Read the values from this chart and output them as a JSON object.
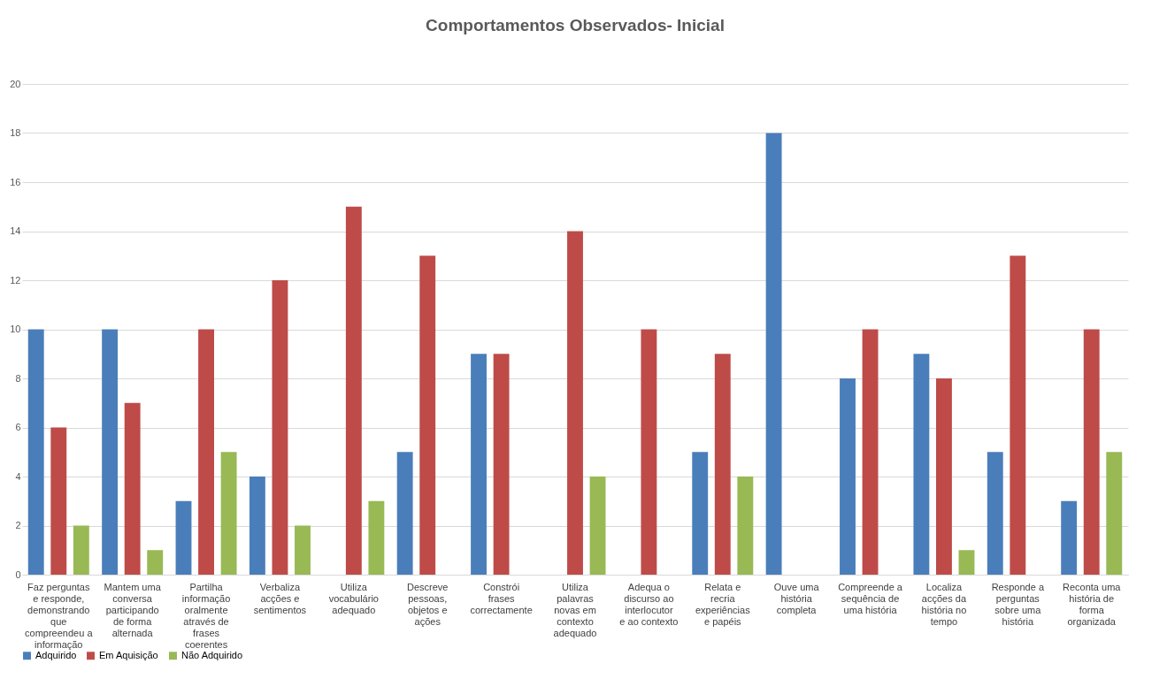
{
  "chart_data": {
    "type": "bar",
    "title": "Comportamentos Observados- Inicial",
    "categories": [
      "Faz perguntas e responde, demonstrando que compreendeu a informação",
      "Mantem uma conversa participando de forma alternada",
      "Partilha informação oralmente através de frases coerentes",
      "Verbaliza acções e sentimentos",
      "Utiliza vocabulário adequado",
      "Descreve pessoas, objetos e ações",
      "Constrói frases correctamente",
      "Utiliza palavras novas em contexto adequado",
      "Adequa o discurso ao interlocutor e ao contexto",
      "Relata e recria experiências e papéis",
      "Ouve uma história completa",
      "Compreende a sequência de uma história",
      "Localiza acções da história no tempo",
      "Responde a perguntas sobre uma história",
      "Reconta uma história de forma organizada"
    ],
    "series": [
      {
        "name": "Adquirido",
        "color": "#4a7ebb",
        "values": [
          10,
          10,
          3,
          4,
          0,
          5,
          9,
          0,
          0,
          5,
          18,
          8,
          9,
          5,
          3
        ]
      },
      {
        "name": "Em Aquisição",
        "color": "#be4b48",
        "values": [
          6,
          7,
          10,
          12,
          15,
          13,
          9,
          14,
          10,
          9,
          0,
          10,
          8,
          13,
          10
        ]
      },
      {
        "name": "Não Adquirido",
        "color": "#98b954",
        "values": [
          2,
          1,
          5,
          2,
          3,
          0,
          0,
          4,
          0,
          4,
          0,
          0,
          1,
          0,
          5
        ]
      }
    ],
    "ylim": [
      0,
      20
    ],
    "yticks": [
      0,
      2,
      4,
      6,
      8,
      10,
      12,
      14,
      16,
      18,
      20
    ],
    "grid": "y",
    "legend": "bottom"
  }
}
